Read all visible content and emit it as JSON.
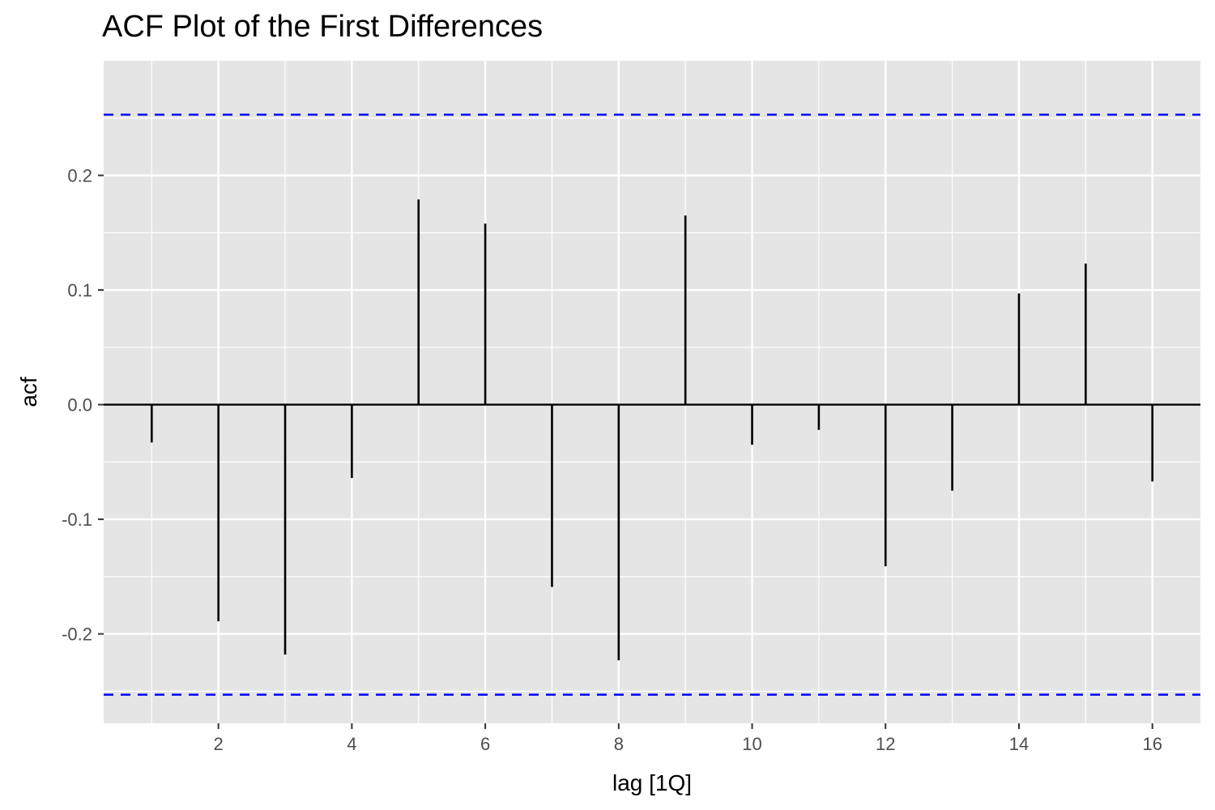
{
  "chart_data": {
    "type": "bar",
    "title": "ACF Plot of the First Differences",
    "xlabel": "lag [1Q]",
    "ylabel": "acf",
    "lags": [
      1,
      2,
      3,
      4,
      5,
      6,
      7,
      8,
      9,
      10,
      11,
      12,
      13,
      14,
      15,
      16
    ],
    "values": [
      -0.033,
      -0.189,
      -0.218,
      -0.064,
      0.179,
      0.158,
      -0.159,
      -0.223,
      0.165,
      -0.035,
      -0.022,
      -0.141,
      -0.075,
      0.097,
      0.123,
      -0.067
    ],
    "confidence_bounds": [
      -0.253,
      0.253
    ],
    "xlim": [
      0.28,
      16.72
    ],
    "ylim": [
      -0.278,
      0.3
    ],
    "x_ticks": [
      2,
      4,
      6,
      8,
      10,
      12,
      14,
      16
    ],
    "x_tick_labels": [
      "2",
      "4",
      "6",
      "8",
      "10",
      "12",
      "14",
      "16"
    ],
    "y_ticks": [
      -0.2,
      -0.1,
      0.0,
      0.1,
      0.2
    ],
    "y_tick_labels": [
      "-0.2",
      "-0.1",
      "0.0",
      "0.1",
      "0.2"
    ],
    "grid": true,
    "legend": "none",
    "colors": {
      "panel_background": "#e5e5e5",
      "grid": "#ffffff",
      "bars": "#000000",
      "bounds": "#0000ff",
      "tick_text": "#4d4d4d"
    }
  }
}
